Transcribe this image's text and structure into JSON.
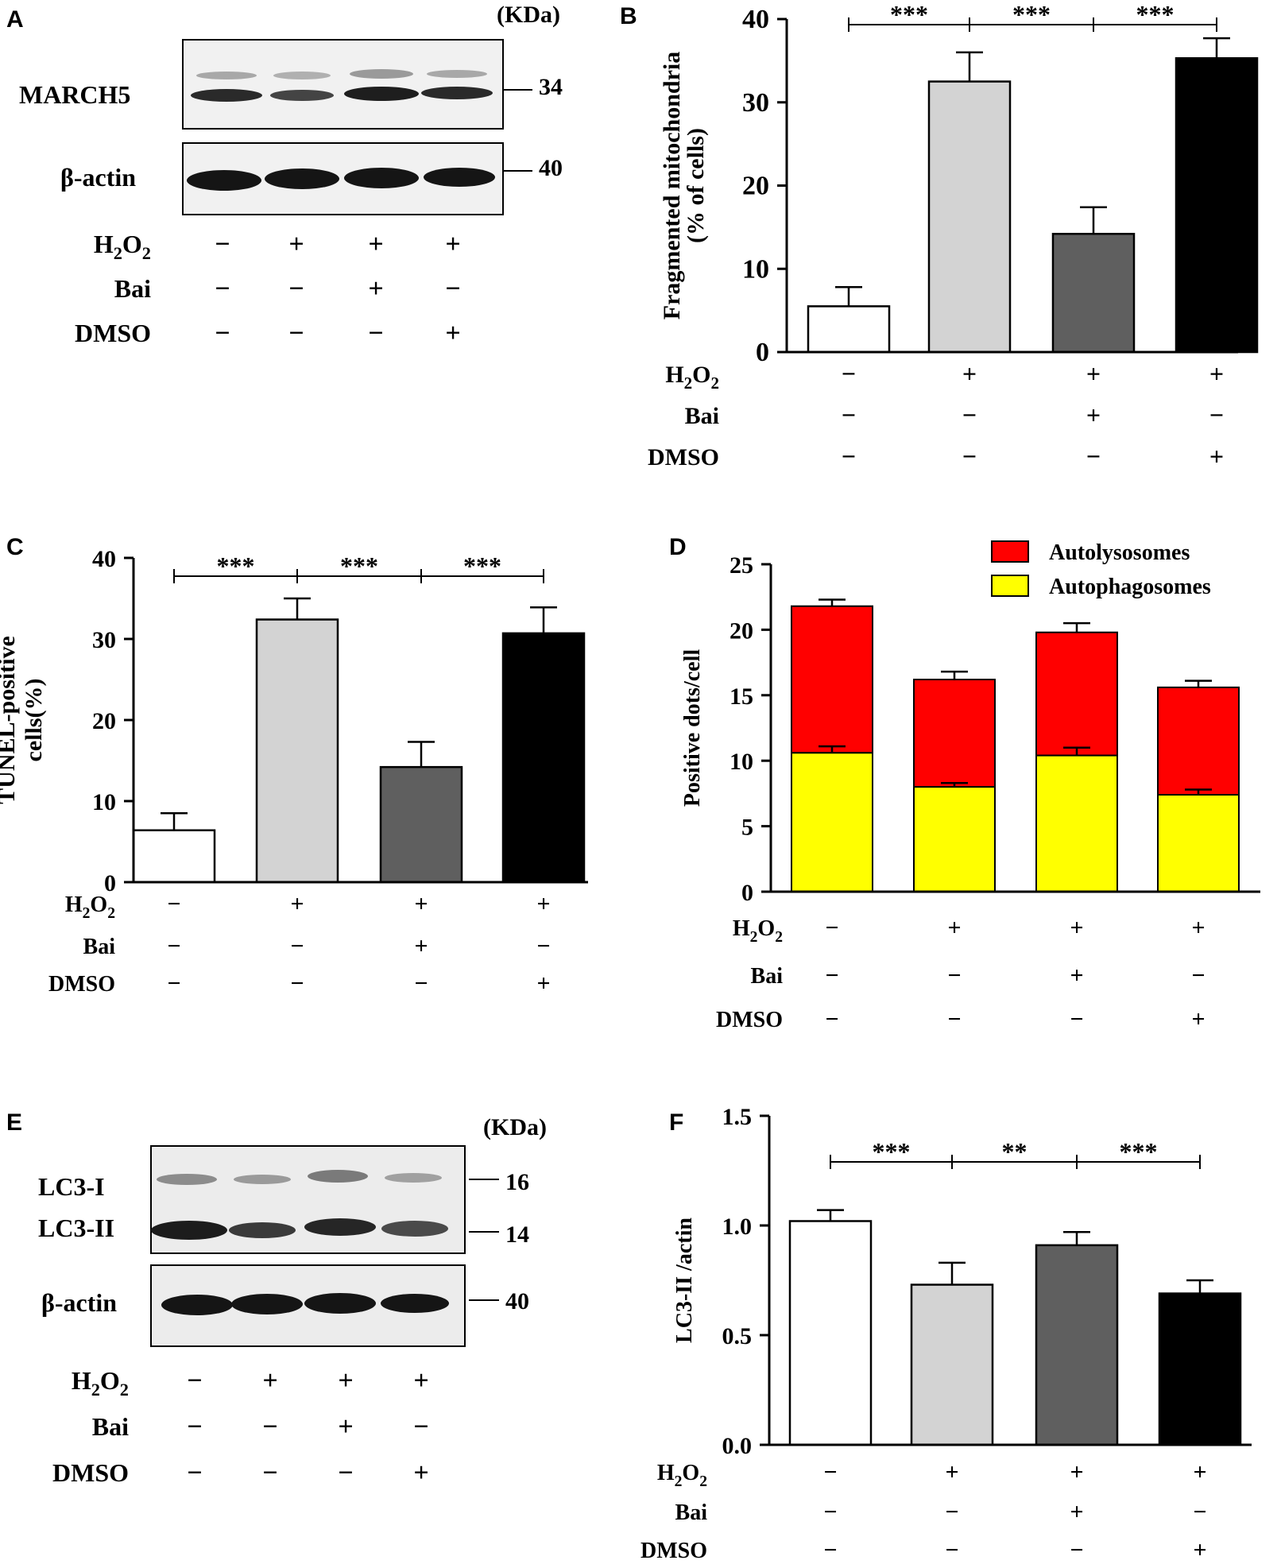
{
  "colors": {
    "control": "#ffffff",
    "h2o2": "#d3d3d3",
    "bai": "#5f5f5f",
    "dmso": "#000000",
    "autolysosomes": "#ff0000",
    "autophagosomes": "#ffff00",
    "blot_bg": "#f1f1f1",
    "band": "#1c1c1c"
  },
  "conditions": {
    "row_labels": [
      "H2O2",
      "Bai",
      "DMSO"
    ],
    "h2o2": [
      "−",
      "+",
      "+",
      "+"
    ],
    "bai": [
      "−",
      "−",
      "+",
      "−"
    ],
    "dmso": [
      "−",
      "−",
      "−",
      "+"
    ]
  },
  "panels": {
    "A": {
      "letter": "A",
      "unit": "(KDa)",
      "blots": [
        {
          "protein": "MARCH5",
          "kda": "34"
        },
        {
          "protein": "β-actin",
          "kda": "40"
        }
      ]
    },
    "B": {
      "letter": "B"
    },
    "C": {
      "letter": "C"
    },
    "D": {
      "letter": "D"
    },
    "E": {
      "letter": "E",
      "unit": "(KDa)",
      "blots": [
        {
          "protein": "LC3-I",
          "kda": "16"
        },
        {
          "protein": "LC3-II",
          "kda": "14"
        },
        {
          "protein": "β-actin",
          "kda": "40"
        }
      ]
    },
    "F": {
      "letter": "F"
    }
  },
  "chart_data": [
    {
      "panel": "B",
      "type": "bar",
      "ylabel": "Fragmented mitochondria (% of cells)",
      "ylabel_lines": [
        "Fragmented mitochondria",
        "(% of cells)"
      ],
      "ylim": [
        0,
        40
      ],
      "yticks": [
        "0",
        "10",
        "20",
        "30",
        "40"
      ],
      "values": [
        5.5,
        32.5,
        14.2,
        35.3
      ],
      "errors": [
        2.3,
        3.5,
        3.2,
        2.4
      ],
      "significance": [
        "***",
        "***",
        "***"
      ]
    },
    {
      "panel": "C",
      "type": "bar",
      "ylabel": "TUNEL-positive cells(%)",
      "ylabel_lines": [
        "TUNEL-positive",
        "cells(%)"
      ],
      "ylim": [
        0,
        40
      ],
      "yticks": [
        "0",
        "10",
        "20",
        "30",
        "40"
      ],
      "values": [
        6.4,
        32.4,
        14.2,
        30.7
      ],
      "errors": [
        2.1,
        2.6,
        3.1,
        3.2
      ],
      "significance": [
        "***",
        "***",
        "***"
      ]
    },
    {
      "panel": "D",
      "type": "bar",
      "stacked": true,
      "ylabel": "Positive dots/cell",
      "ylim": [
        0,
        25
      ],
      "yticks": [
        "0",
        "5",
        "10",
        "15",
        "20",
        "25"
      ],
      "legend_position": "top-right",
      "series": [
        {
          "name": "Autophagosomes",
          "values": [
            10.6,
            8.0,
            10.4,
            7.4
          ],
          "errors": [
            0.5,
            0.3,
            0.6,
            0.4
          ]
        },
        {
          "name": "Autolysosomes",
          "values": [
            11.2,
            8.2,
            9.4,
            8.2
          ],
          "errors": [
            0.5,
            0.6,
            0.7,
            0.5
          ]
        }
      ]
    },
    {
      "panel": "F",
      "type": "bar",
      "ylabel": "LC3-II /actin",
      "ylim": [
        0,
        1.5
      ],
      "yticks": [
        "0.0",
        "0.5",
        "1.0",
        "1.5"
      ],
      "values": [
        1.02,
        0.73,
        0.91,
        0.69
      ],
      "errors": [
        0.05,
        0.1,
        0.06,
        0.06
      ],
      "significance": [
        "***",
        "**",
        "***"
      ]
    }
  ]
}
